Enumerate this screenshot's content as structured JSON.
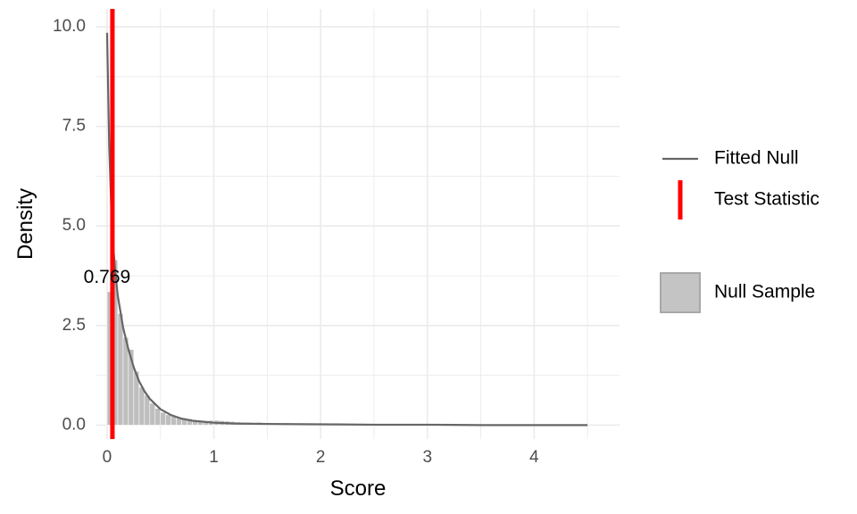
{
  "chart_data": {
    "type": "bar",
    "title": "",
    "xlabel": "Score",
    "ylabel": "Density",
    "xlim": [
      -0.1,
      4.8
    ],
    "ylim": [
      -0.35,
      10.45
    ],
    "x_ticks": [
      0,
      1,
      2,
      3,
      4
    ],
    "x_tick_labels": [
      "0",
      "1",
      "2",
      "3",
      "4"
    ],
    "y_ticks": [
      0,
      2.5,
      5,
      7.5,
      10
    ],
    "y_tick_labels": [
      "0.0",
      "2.5",
      "5.0",
      "7.5",
      "10.0"
    ],
    "grid": true,
    "legend_position": "right",
    "histogram": {
      "name": "Null Sample",
      "bin_width": 0.05,
      "bin_starts": [
        0.0,
        0.05,
        0.1,
        0.15,
        0.2,
        0.25,
        0.3,
        0.35,
        0.4,
        0.45,
        0.5,
        0.55,
        0.6,
        0.65,
        0.7,
        0.75,
        0.8,
        0.85,
        0.9,
        0.95,
        1.0,
        1.05,
        1.1,
        1.15,
        1.2,
        1.25,
        1.3,
        1.35,
        1.4,
        1.45,
        1.5,
        1.55,
        1.6,
        1.65,
        1.7,
        1.75,
        1.8,
        1.85,
        1.9,
        1.95,
        2.0,
        2.05,
        2.1,
        2.15,
        2.2,
        2.25,
        2.3,
        2.35,
        2.4,
        2.45,
        2.5,
        2.55,
        2.6,
        2.65,
        2.7,
        2.75,
        2.8,
        2.85,
        2.9,
        2.95,
        3.0,
        3.05,
        3.1,
        3.15,
        3.2,
        3.25,
        3.3,
        3.35,
        3.4,
        3.45,
        3.5,
        3.55,
        3.6,
        3.65,
        3.7,
        3.75,
        3.8,
        3.85,
        3.9,
        3.95,
        4.0,
        4.05,
        4.1,
        4.15,
        4.2,
        4.25,
        4.3,
        4.35,
        4.4,
        4.45
      ],
      "densities": [
        3.35,
        4.15,
        2.8,
        2.2,
        1.9,
        1.35,
        0.95,
        0.75,
        0.55,
        0.42,
        0.32,
        0.26,
        0.22,
        0.2,
        0.18,
        0.16,
        0.13,
        0.12,
        0.11,
        0.12,
        0.12,
        0.11,
        0.1,
        0.09,
        0.08,
        0.07,
        0.07,
        0.06,
        0.07,
        0.06,
        0.05,
        0.05,
        0.04,
        0.05,
        0.04,
        0.04,
        0.04,
        0.03,
        0.03,
        0.03,
        0.03,
        0.03,
        0.03,
        0.02,
        0.02,
        0.02,
        0.02,
        0.02,
        0.02,
        0.02,
        0.02,
        0.02,
        0.02,
        0.02,
        0.02,
        0.01,
        0.02,
        0.02,
        0.01,
        0.01,
        0.01,
        0.01,
        0.01,
        0.01,
        0.01,
        0.01,
        0.01,
        0.01,
        0.01,
        0.01,
        0.01,
        0.01,
        0.01,
        0.01,
        0.01,
        0.01,
        0.01,
        0.01,
        0.01,
        0.01,
        0.01,
        0.01,
        0.01,
        0.01,
        0.01,
        0.01,
        0.01,
        0.01,
        0.01,
        0.01
      ],
      "fill_color": "#bebebe",
      "stroke_color": "#ffffff"
    },
    "fitted_null": {
      "name": "Fitted Null",
      "x": [
        0.0,
        0.02,
        0.04,
        0.06,
        0.08,
        0.1,
        0.15,
        0.2,
        0.25,
        0.3,
        0.35,
        0.4,
        0.5,
        0.6,
        0.7,
        0.8,
        1.0,
        1.2,
        1.5,
        2.0,
        2.5,
        3.0,
        3.5,
        4.0,
        4.5
      ],
      "y": [
        9.85,
        7.0,
        5.4,
        4.4,
        3.75,
        3.25,
        2.45,
        1.9,
        1.45,
        1.1,
        0.85,
        0.66,
        0.4,
        0.25,
        0.16,
        0.11,
        0.06,
        0.04,
        0.03,
        0.02,
        0.01,
        0.01,
        0.0,
        0.0,
        0.0
      ],
      "color": "#666666"
    },
    "test_statistic": {
      "name": "Test Statistic",
      "x": 0.05,
      "color": "#ff0000"
    },
    "annotation": {
      "text": "0.769",
      "x": 0.0,
      "y": 3.7
    },
    "legend": [
      {
        "label": "Fitted Null",
        "kind": "line"
      },
      {
        "label": "Test Statistic",
        "kind": "vline"
      },
      {
        "label": "Null Sample",
        "kind": "fill"
      }
    ]
  }
}
